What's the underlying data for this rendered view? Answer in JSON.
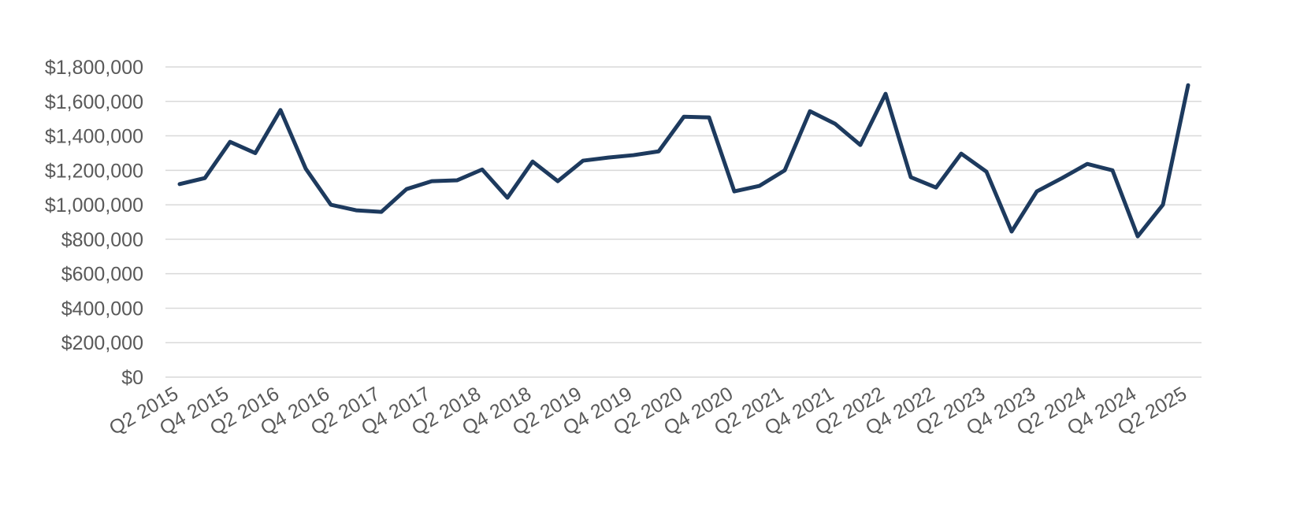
{
  "chart_data": {
    "type": "line",
    "categories": [
      "Q2 2015",
      null,
      "Q4 2015",
      null,
      "Q2 2016",
      null,
      "Q4 2016",
      null,
      "Q2 2017",
      null,
      "Q4 2017",
      null,
      "Q2 2018",
      null,
      "Q4 2018",
      null,
      "Q2 2019",
      null,
      "Q4 2019",
      null,
      "Q2 2020",
      null,
      "Q4 2020",
      null,
      "Q2 2021",
      null,
      "Q4 2021",
      null,
      "Q2 2022",
      null,
      "Q4 2022",
      null,
      "Q2 2023",
      null,
      "Q4 2023",
      null,
      "Q2 2024",
      null,
      "Q4 2024",
      null,
      "Q2 2025"
    ],
    "series": [
      {
        "color": "#1d3a5e",
        "values": [
          1120000,
          1155000,
          1365000,
          1300000,
          1550000,
          1210000,
          1000000,
          968000,
          959000,
          1091000,
          1137000,
          1142000,
          1205000,
          1041000,
          1251000,
          1137000,
          1256000,
          1274000,
          1288000,
          1310000,
          1511000,
          1507000,
          1078000,
          1110000,
          1200000,
          1543000,
          1470000,
          1347000,
          1644000,
          1160000,
          1100000,
          1297000,
          1192000,
          845000,
          1078000,
          1155000,
          1237000,
          1200000,
          817000,
          1000000,
          1694000
        ]
      }
    ],
    "ylim": [
      0,
      1800000
    ],
    "yticks": [
      {
        "value": 0,
        "label": "$0"
      },
      {
        "value": 200000,
        "label": "$200,000"
      },
      {
        "value": 400000,
        "label": "$400,000"
      },
      {
        "value": 600000,
        "label": "$600,000"
      },
      {
        "value": 800000,
        "label": "$800,000"
      },
      {
        "value": 1000000,
        "label": "$1,000,000"
      },
      {
        "value": 1200000,
        "label": "$1,200,000"
      },
      {
        "value": 1400000,
        "label": "$1,400,000"
      },
      {
        "value": 1600000,
        "label": "$1,600,000"
      },
      {
        "value": 1800000,
        "label": "$1,800,000"
      }
    ],
    "grid": true
  }
}
